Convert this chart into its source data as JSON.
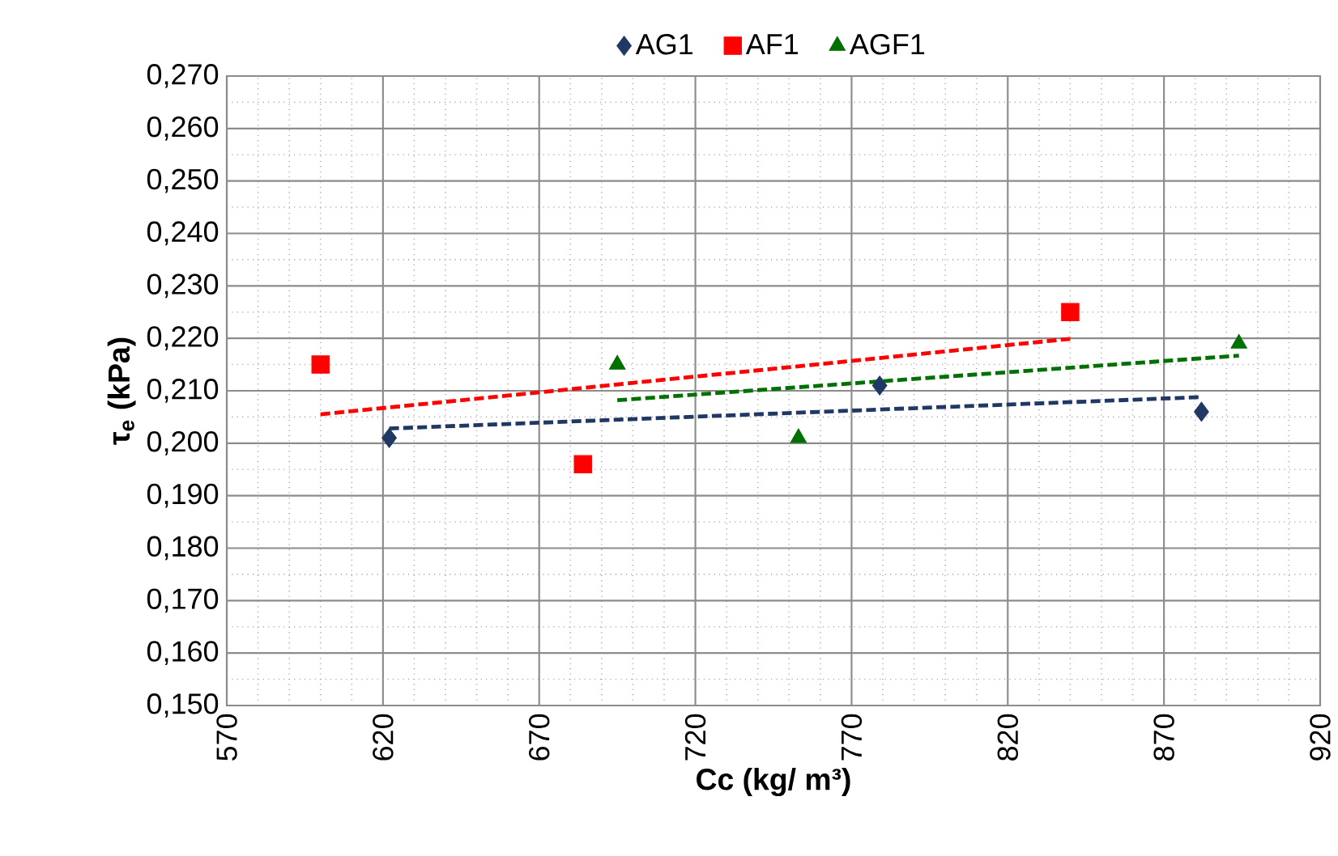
{
  "chart_data": {
    "type": "scatter",
    "xlabel": "Cc (kg/ m³)",
    "ylabel": "τ$_{e}$ (kPa)",
    "xlim": [
      570,
      920
    ],
    "xticks": [
      570,
      620,
      670,
      720,
      770,
      820,
      870,
      920
    ],
    "ylim": [
      0.15,
      0.27
    ],
    "yticks": [
      {
        "value": 0.15,
        "label": "0,150"
      },
      {
        "value": 0.16,
        "label": "0,160"
      },
      {
        "value": 0.17,
        "label": "0,170"
      },
      {
        "value": 0.18,
        "label": "0,180"
      },
      {
        "value": 0.19,
        "label": "0,190"
      },
      {
        "value": 0.2,
        "label": "0,200"
      },
      {
        "value": 0.21,
        "label": "0,210"
      },
      {
        "value": 0.22,
        "label": "0,220"
      },
      {
        "value": 0.23,
        "label": "0,230"
      },
      {
        "value": 0.24,
        "label": "0,240"
      },
      {
        "value": 0.25,
        "label": "0,250"
      },
      {
        "value": 0.26,
        "label": "0,260"
      },
      {
        "value": 0.27,
        "label": "0,270"
      }
    ],
    "grid": true,
    "legend": "top",
    "series": [
      {
        "name": "AG1",
        "color": "#1f3864",
        "marker": "diamond",
        "x": [
          622,
          779,
          882
        ],
        "values": [
          0.201,
          0.211,
          0.206
        ]
      },
      {
        "name": "AF1",
        "color": "#ff0000",
        "marker": "square",
        "x": [
          600,
          684,
          840
        ],
        "values": [
          0.215,
          0.196,
          0.225
        ]
      },
      {
        "name": "AGF1",
        "color": "#007000",
        "marker": "triangle",
        "x": [
          695,
          753,
          894
        ],
        "values": [
          0.215,
          0.201,
          0.219
        ]
      },
      {
        "type": "line",
        "color": "#1f3864",
        "line_style": "dashed",
        "marker": "none",
        "x": [
          622,
          882
        ],
        "values": [
          0.2028,
          0.2088
        ]
      },
      {
        "type": "line",
        "color": "#ff0000",
        "line_style": "dashed",
        "marker": "none",
        "x": [
          600,
          840
        ],
        "values": [
          0.2055,
          0.2199
        ]
      },
      {
        "type": "line",
        "color": "#007000",
        "line_style": "dashed",
        "marker": "none",
        "x": [
          695,
          894
        ],
        "values": [
          0.2082,
          0.2167
        ]
      }
    ]
  }
}
